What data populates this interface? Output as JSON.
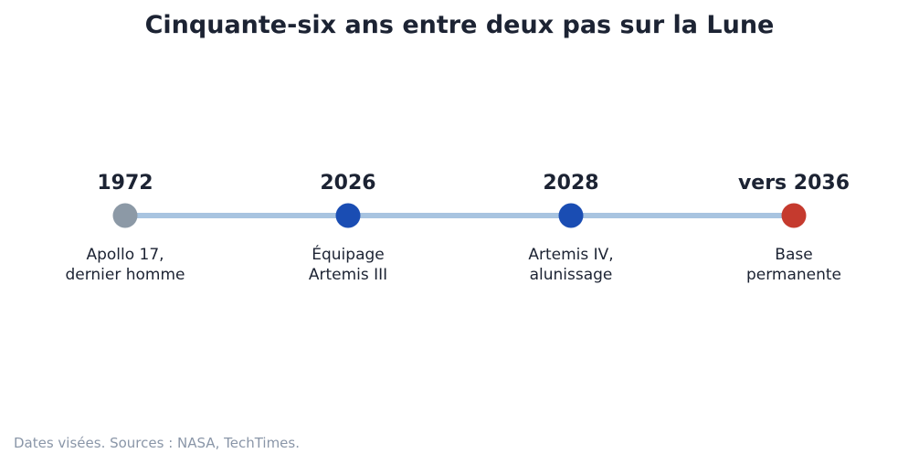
{
  "title": "Cinquante-six ans entre deux pas sur la Lune",
  "timeline": {
    "line_color": "#a8c4e0",
    "events": [
      {
        "date": "1972",
        "label_lines": [
          "Apollo 17,",
          "dernier homme"
        ],
        "color": "#8c99a6"
      },
      {
        "date": "2026",
        "label_lines": [
          "Équipage",
          "Artemis III"
        ],
        "color": "#1a4db3"
      },
      {
        "date": "2028",
        "label_lines": [
          "Artemis IV,",
          "alunissage"
        ],
        "color": "#1a4db3"
      },
      {
        "date": "vers 2036",
        "label_lines": [
          "Base",
          "permanente"
        ],
        "color": "#c53a2e"
      }
    ]
  },
  "footnote": "Dates visées. Sources : NASA, TechTimes."
}
